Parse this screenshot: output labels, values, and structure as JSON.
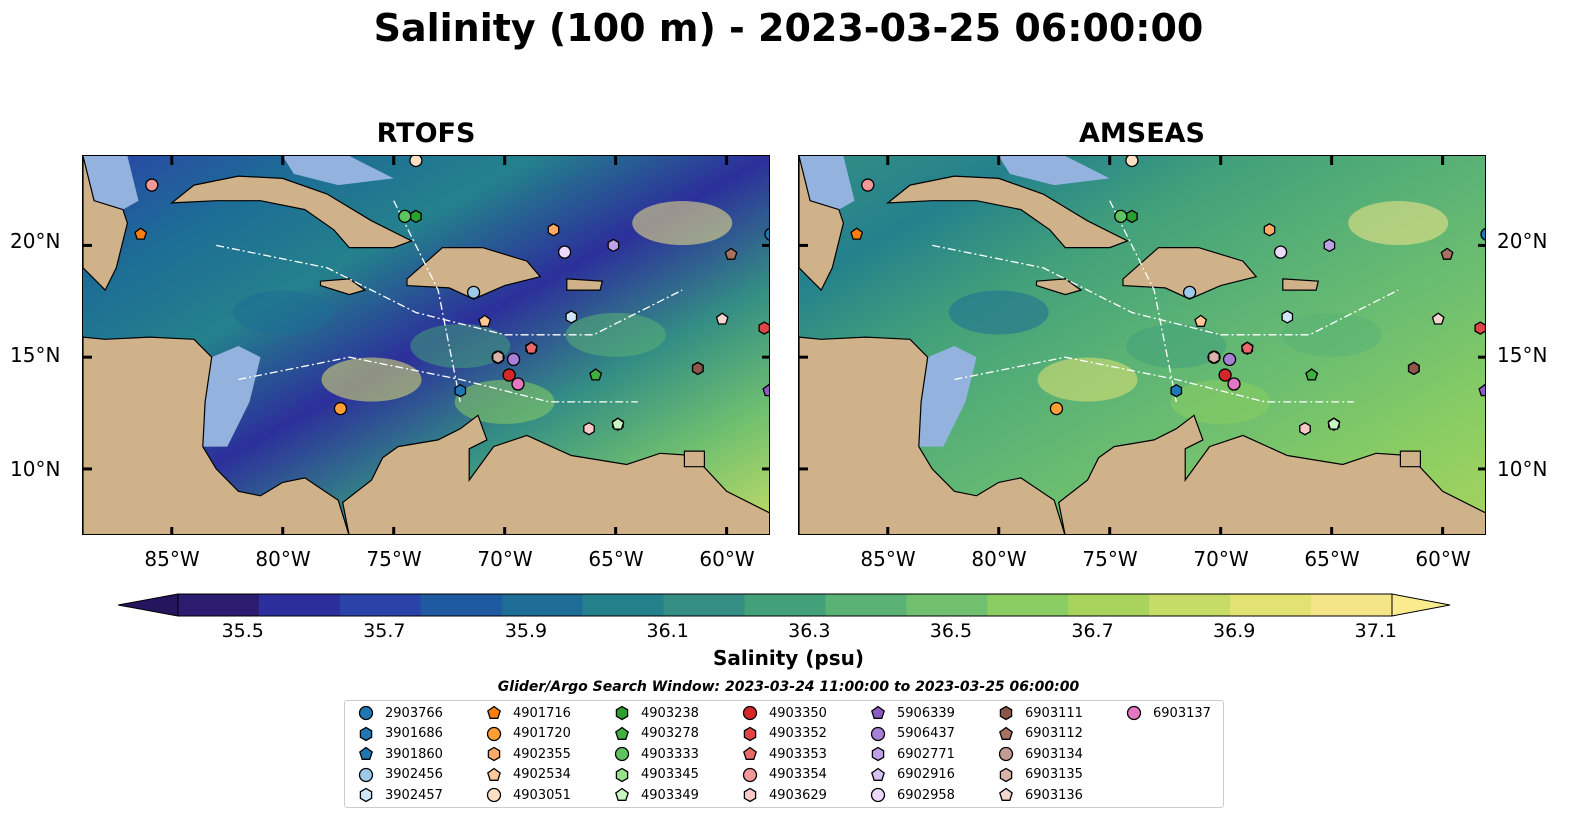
{
  "title": "Salinity (100 m) - 2023-03-25 06:00:00",
  "panels": [
    {
      "title": "RTOFS"
    },
    {
      "title": "AMSEAS"
    }
  ],
  "axes": {
    "lon_ticks": [
      "85°W",
      "80°W",
      "75°W",
      "70°W",
      "65°W",
      "60°W"
    ],
    "lat_ticks": [
      "20°N",
      "15°N",
      "10°N"
    ],
    "lon_range": [
      -89,
      -58
    ],
    "lat_range": [
      7,
      24
    ]
  },
  "colorbar": {
    "label": "Salinity (psu)",
    "ticks": [
      "35.5",
      "35.7",
      "35.9",
      "36.1",
      "36.3",
      "36.5",
      "36.7",
      "36.9",
      "37.1"
    ],
    "colors": [
      "#2c1c70",
      "#2c2f9b",
      "#2b43a8",
      "#1f5aa0",
      "#1d6d96",
      "#24818c",
      "#348e84",
      "#43a17a",
      "#5ab275",
      "#70c06f",
      "#8acd63",
      "#a8d45e",
      "#c7dc66",
      "#e2e272",
      "#f5e589"
    ]
  },
  "legend": {
    "title": "Glider/Argo Search Window: 2023-03-24 11:00:00 to 2023-03-25 06:00:00",
    "entries": [
      {
        "id": "2903766",
        "marker": "circle",
        "color": "#1f77b4"
      },
      {
        "id": "3901686",
        "marker": "hexagon",
        "color": "#1f77b4"
      },
      {
        "id": "3901860",
        "marker": "pentagon",
        "color": "#1f77b4"
      },
      {
        "id": "3902456",
        "marker": "circle",
        "color": "#9ecae9"
      },
      {
        "id": "3902457",
        "marker": "hexagon",
        "color": "#cfe6fa"
      },
      {
        "id": "4901716",
        "marker": "pentagon",
        "color": "#ff7f0e"
      },
      {
        "id": "4901720",
        "marker": "circle",
        "color": "#ff9f35"
      },
      {
        "id": "4902355",
        "marker": "hexagon",
        "color": "#ffaa66"
      },
      {
        "id": "4902534",
        "marker": "pentagon",
        "color": "#ffc898"
      },
      {
        "id": "4903051",
        "marker": "circle",
        "color": "#ffe0c4"
      },
      {
        "id": "4903238",
        "marker": "hexagon",
        "color": "#2ca02c"
      },
      {
        "id": "4903278",
        "marker": "pentagon",
        "color": "#3fb13f"
      },
      {
        "id": "4903333",
        "marker": "circle",
        "color": "#5fc45f"
      },
      {
        "id": "4903345",
        "marker": "hexagon",
        "color": "#98df8a"
      },
      {
        "id": "4903349",
        "marker": "pentagon",
        "color": "#c9f5c0"
      },
      {
        "id": "4903350",
        "marker": "circle",
        "color": "#d62728"
      },
      {
        "id": "4903352",
        "marker": "hexagon",
        "color": "#e04545"
      },
      {
        "id": "4903353",
        "marker": "pentagon",
        "color": "#ea6a6a"
      },
      {
        "id": "4903354",
        "marker": "circle",
        "color": "#f29898"
      },
      {
        "id": "4903629",
        "marker": "hexagon",
        "color": "#fbc8c8"
      },
      {
        "id": "5906339",
        "marker": "pentagon",
        "color": "#8c5cc4"
      },
      {
        "id": "5906437",
        "marker": "circle",
        "color": "#a77fd6"
      },
      {
        "id": "6902771",
        "marker": "hexagon",
        "color": "#bea0e6"
      },
      {
        "id": "6902916",
        "marker": "pentagon",
        "color": "#d6c2f3"
      },
      {
        "id": "6902958",
        "marker": "circle",
        "color": "#ead9fb"
      },
      {
        "id": "6903111",
        "marker": "hexagon",
        "color": "#8c564b"
      },
      {
        "id": "6903112",
        "marker": "pentagon",
        "color": "#a87060"
      },
      {
        "id": "6903134",
        "marker": "circle",
        "color": "#c49c94"
      },
      {
        "id": "6903135",
        "marker": "hexagon",
        "color": "#d9b3a8"
      },
      {
        "id": "6903136",
        "marker": "pentagon",
        "color": "#f3d7cf"
      },
      {
        "id": "6903137",
        "marker": "circle",
        "color": "#e377c2"
      }
    ]
  },
  "floats": [
    {
      "id": "2903766",
      "lon": -58.0,
      "lat": 20.5
    },
    {
      "id": "3901686",
      "lon": -61.3,
      "lat": 14.5
    },
    {
      "id": "3901860",
      "lon": -65.9,
      "lat": 14.2
    },
    {
      "id": "3902456",
      "lon": -71.4,
      "lat": 17.9
    },
    {
      "id": "3902457",
      "lon": -67.0,
      "lat": 16.8
    },
    {
      "id": "4901716",
      "lon": -86.4,
      "lat": 20.5
    },
    {
      "id": "4901720",
      "lon": -77.4,
      "lat": 12.7
    },
    {
      "id": "4902355",
      "lon": -68.8,
      "lat": 15.4
    },
    {
      "id": "4902534",
      "lon": -70.9,
      "lat": 16.6
    },
    {
      "id": "4903051",
      "lon": -74.0,
      "lat": 23.8
    },
    {
      "id": "4903238",
      "lon": -61.3,
      "lat": 14.5
    },
    {
      "id": "4903278",
      "lon": -65.9,
      "lat": 14.2
    },
    {
      "id": "4903333",
      "lon": -74.5,
      "lat": 21.3
    },
    {
      "id": "4903345",
      "lon": -64.9,
      "lat": 12.0
    },
    {
      "id": "4903349",
      "lon": -64.9,
      "lat": 12.0
    },
    {
      "id": "4903350",
      "lon": -69.8,
      "lat": 14.2
    },
    {
      "id": "4903352",
      "lon": -58.3,
      "lat": 16.3
    },
    {
      "id": "4903353",
      "lon": -68.8,
      "lat": 15.4
    },
    {
      "id": "4903354",
      "lon": -85.9,
      "lat": 22.7
    },
    {
      "id": "4903629",
      "lon": -66.2,
      "lat": 11.8
    },
    {
      "id": "5906339",
      "lon": -58.1,
      "lat": 13.5
    },
    {
      "id": "5906437",
      "lon": -69.6,
      "lat": 14.9
    },
    {
      "id": "6902771",
      "lon": -65.1,
      "lat": 20.0
    },
    {
      "id": "6902916",
      "lon": -67.3,
      "lat": 19.7
    },
    {
      "id": "6902958",
      "lon": -67.3,
      "lat": 19.7
    },
    {
      "id": "6903111",
      "lon": -61.3,
      "lat": 14.5
    },
    {
      "id": "6903112",
      "lon": -59.8,
      "lat": 19.6
    },
    {
      "id": "6903134",
      "lon": -70.3,
      "lat": 15.0
    },
    {
      "id": "6903135",
      "lon": -70.3,
      "lat": 15.0
    },
    {
      "id": "6903136",
      "lon": -60.2,
      "lat": 16.7
    },
    {
      "id": "6903137",
      "lon": -69.4,
      "lat": 13.8
    },
    {
      "id": "4903238",
      "lon": -74.0,
      "lat": 21.3
    },
    {
      "id": "4902355",
      "lon": -67.8,
      "lat": 20.7
    },
    {
      "id": "3901686",
      "lon": -72.0,
      "lat": 13.5
    }
  ]
}
